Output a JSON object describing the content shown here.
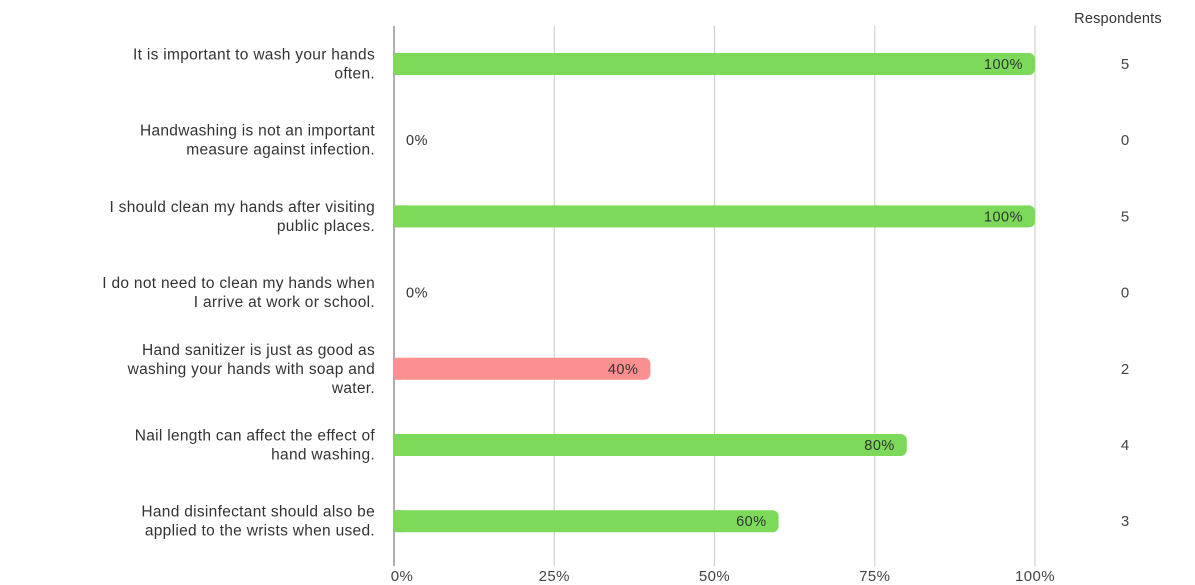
{
  "chart_data": {
    "type": "bar",
    "orientation": "horizontal",
    "categories": [
      "It is important to wash your hands often.",
      "Handwashing is not an important measure against infection.",
      "I should clean my hands after visiting public places.",
      "I do not need to clean my hands when I arrive at work or school.",
      "Hand sanitizer is just as good as washing your hands with soap and water.",
      "Nail length can affect the effect of hand washing.",
      "Hand disinfectant should also be applied to the wrists when used."
    ],
    "category_lines": [
      [
        "It is important to wash your hands",
        "often."
      ],
      [
        "Handwashing is not an important",
        "measure against infection."
      ],
      [
        "I should clean my hands after visiting",
        "public places."
      ],
      [
        "I do not need to clean my hands when",
        "I arrive at work or school."
      ],
      [
        "Hand sanitizer is just as good as",
        "washing your hands with soap and",
        "water."
      ],
      [
        "Nail length can affect the effect of",
        "hand washing."
      ],
      [
        "Hand disinfectant should also be",
        "applied to the wrists when used."
      ]
    ],
    "values": [
      100,
      0,
      100,
      0,
      40,
      80,
      60
    ],
    "value_labels": [
      "100%",
      "0%",
      "100%",
      "0%",
      "40%",
      "80%",
      "60%"
    ],
    "bar_colors": [
      "#7dd95a",
      "#7dd95a",
      "#7dd95a",
      "#7dd95a",
      "#fc8f8f",
      "#7dd95a",
      "#7dd95a"
    ],
    "respondents": [
      5,
      0,
      5,
      0,
      2,
      4,
      3
    ],
    "respondents_header": "Respondents",
    "xlim": [
      0,
      100
    ],
    "xticks": [
      0,
      25,
      50,
      75,
      100
    ],
    "xtick_labels": [
      "0%",
      "25%",
      "50%",
      "75%",
      "100%"
    ],
    "grid": "vertical",
    "title": "",
    "xlabel": "",
    "ylabel": ""
  }
}
